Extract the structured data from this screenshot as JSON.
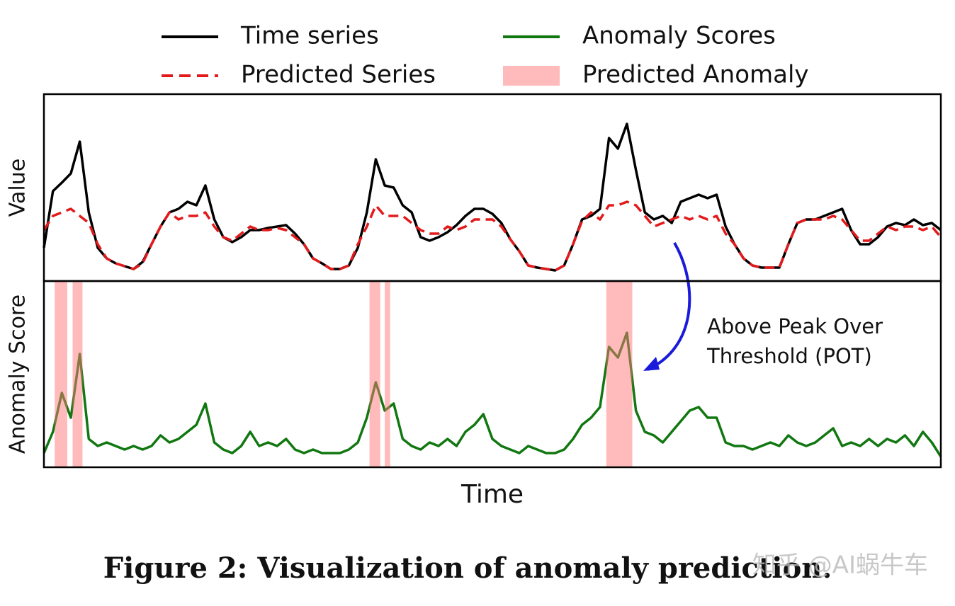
{
  "chart_data": [
    {
      "type": "line",
      "ylabel": "Value",
      "xlim": [
        0,
        100
      ],
      "ylim": [
        0,
        264
      ],
      "series": [
        {
          "name": "Time series",
          "color": "#000000",
          "dash": false,
          "values": [
            47,
            127,
            139,
            152,
            197,
            97,
            47,
            32,
            25,
            21,
            17,
            27,
            52,
            77,
            97,
            102,
            112,
            107,
            135,
            87,
            62,
            55,
            62,
            72,
            72,
            75,
            77,
            79,
            67,
            52,
            32,
            25,
            17,
            17,
            22,
            47,
            97,
            172,
            135,
            132,
            107,
            97,
            62,
            57,
            62,
            69,
            79,
            92,
            102,
            102,
            95,
            82,
            59,
            42,
            22,
            19,
            17,
            15,
            22,
            52,
            87,
            92,
            102,
            202,
            187,
            222,
            157,
            97,
            87,
            92,
            82,
            112,
            117,
            122,
            117,
            122,
            77,
            52,
            32,
            22,
            19,
            19,
            19,
            52,
            82,
            87,
            87,
            92,
            97,
            102,
            72,
            52,
            52,
            62,
            77,
            82,
            79,
            87,
            79,
            82,
            72
          ]
        },
        {
          "name": "Predicted Series",
          "color": "#e31a1c",
          "dash": true,
          "values": [
            72,
            92,
            97,
            102,
            92,
            82,
            52,
            32,
            25,
            21,
            17,
            25,
            52,
            77,
            97,
            87,
            92,
            92,
            97,
            77,
            62,
            57,
            67,
            77,
            72,
            72,
            75,
            72,
            62,
            52,
            32,
            25,
            17,
            17,
            22,
            52,
            77,
            107,
            92,
            92,
            92,
            82,
            72,
            67,
            67,
            77,
            72,
            77,
            87,
            87,
            87,
            77,
            59,
            42,
            22,
            19,
            17,
            15,
            22,
            52,
            85,
            97,
            87,
            107,
            107,
            112,
            107,
            92,
            77,
            82,
            87,
            92,
            87,
            92,
            87,
            92,
            67,
            52,
            32,
            22,
            19,
            19,
            19,
            52,
            82,
            87,
            87,
            87,
            92,
            87,
            72,
            57,
            57,
            67,
            77,
            72,
            77,
            77,
            72,
            77,
            62
          ]
        }
      ]
    },
    {
      "type": "line",
      "ylabel": "Anomaly Score",
      "xlabel": "Time",
      "xlim": [
        0,
        100
      ],
      "ylim": [
        0,
        263
      ],
      "series": [
        {
          "name": "Anomaly Scores",
          "color": "#117711",
          "dash": false,
          "values": [
            20,
            50,
            105,
            70,
            160,
            40,
            30,
            35,
            30,
            25,
            30,
            25,
            30,
            45,
            35,
            40,
            50,
            60,
            90,
            35,
            25,
            20,
            30,
            50,
            30,
            35,
            30,
            40,
            25,
            20,
            25,
            20,
            20,
            20,
            25,
            35,
            70,
            120,
            80,
            90,
            40,
            30,
            25,
            35,
            30,
            40,
            30,
            50,
            60,
            75,
            40,
            30,
            25,
            20,
            30,
            25,
            20,
            20,
            25,
            40,
            60,
            70,
            85,
            170,
            155,
            190,
            80,
            50,
            45,
            35,
            50,
            65,
            80,
            85,
            70,
            70,
            35,
            30,
            30,
            25,
            30,
            35,
            30,
            45,
            35,
            30,
            35,
            45,
            55,
            30,
            35,
            30,
            40,
            30,
            40,
            35,
            45,
            30,
            50,
            35,
            15
          ]
        }
      ],
      "spans": {
        "name": "Predicted Anomaly",
        "color": "#ff7878",
        "ranges": [
          [
            1.2,
            2.6
          ],
          [
            3.2,
            4.3
          ],
          [
            36.3,
            37.5
          ],
          [
            38.0,
            38.6
          ],
          [
            62.7,
            65.6
          ]
        ]
      },
      "annotation": [
        "Above Peak Over",
        "Threshold (POT)"
      ]
    }
  ],
  "caption": "Figure 2: Visualization of anomaly prediction.",
  "watermark": "知乎 @AI蜗牛车"
}
